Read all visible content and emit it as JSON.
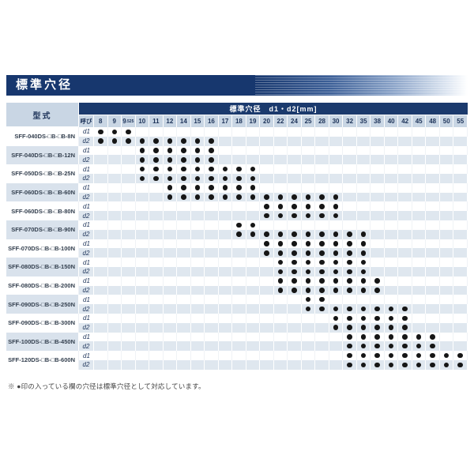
{
  "page": {
    "title": "標準穴径",
    "footnote": "※ ●印の入っている欄の穴径は標準穴径として対応しています。"
  },
  "colors": {
    "navy": "#17376e",
    "header_bg": "#c9d6e4",
    "shade_bg": "#dfe7ef",
    "dot": "#161616"
  },
  "table": {
    "model_header": "型式",
    "span_header": "標準穴径　d1・d2[mm]",
    "nominal_header": "呼び",
    "columns": [
      "8",
      "9",
      "9.525",
      "10",
      "11",
      "12",
      "14",
      "15",
      "16",
      "17",
      "18",
      "19",
      "20",
      "22",
      "24",
      "25",
      "28",
      "30",
      "32",
      "35",
      "38",
      "40",
      "42",
      "45",
      "48",
      "50",
      "55"
    ],
    "row_labels": [
      "d1",
      "d2"
    ],
    "rows": [
      {
        "model": "SFF-040DS-□B-□B-8N",
        "d1": [
          "8",
          "9",
          "9.525"
        ],
        "d2": [
          "8",
          "9",
          "9.525",
          "10",
          "11",
          "12",
          "14",
          "15",
          "16"
        ]
      },
      {
        "model": "SFF-040DS-□B-□B-12N",
        "d1": [
          "10",
          "11",
          "12",
          "14",
          "15",
          "16"
        ],
        "d2": [
          "10",
          "11",
          "12",
          "14",
          "15",
          "16"
        ]
      },
      {
        "model": "SFF-050DS-□B-□B-25N",
        "d1": [
          "10",
          "11",
          "12",
          "14",
          "15",
          "16",
          "17",
          "18",
          "19"
        ],
        "d2": [
          "10",
          "11",
          "12",
          "14",
          "15",
          "16",
          "17",
          "18",
          "19"
        ]
      },
      {
        "model": "SFF-060DS-□B-□B-60N",
        "d1": [
          "12",
          "14",
          "15",
          "16",
          "17",
          "18",
          "19"
        ],
        "d2": [
          "12",
          "14",
          "15",
          "16",
          "17",
          "18",
          "19",
          "20",
          "22",
          "24",
          "25",
          "28",
          "30"
        ]
      },
      {
        "model": "SFF-060DS-□B-□B-80N",
        "d1": [
          "20",
          "22",
          "24",
          "25",
          "28",
          "30"
        ],
        "d2": [
          "20",
          "22",
          "24",
          "25",
          "28",
          "30"
        ]
      },
      {
        "model": "SFF-070DS-□B-□B-90N",
        "d1": [
          "18",
          "19"
        ],
        "d2": [
          "18",
          "19",
          "20",
          "22",
          "24",
          "25",
          "28",
          "30",
          "32",
          "35"
        ]
      },
      {
        "model": "SFF-070DS-□B-□B-100N",
        "d1": [
          "20",
          "22",
          "24",
          "25",
          "28",
          "30",
          "32",
          "35"
        ],
        "d2": [
          "20",
          "22",
          "24",
          "25",
          "28",
          "30",
          "32",
          "35"
        ]
      },
      {
        "model": "SFF-080DS-□B-□B-150N",
        "d1": [
          "22",
          "24",
          "25",
          "28",
          "30",
          "32",
          "35"
        ],
        "d2": [
          "22",
          "24",
          "25",
          "28",
          "30",
          "32",
          "35"
        ]
      },
      {
        "model": "SFF-080DS-□B-□B-200N",
        "d1": [
          "22",
          "24",
          "25",
          "28",
          "30",
          "32",
          "35",
          "38"
        ],
        "d2": [
          "22",
          "24",
          "25",
          "28",
          "30",
          "32",
          "35",
          "38"
        ]
      },
      {
        "model": "SFF-090DS-□B-□B-250N",
        "d1": [
          "25",
          "28"
        ],
        "d2": [
          "25",
          "28",
          "30",
          "32",
          "35",
          "38",
          "40",
          "42"
        ]
      },
      {
        "model": "SFF-090DS-□B-□B-300N",
        "d1": [
          "30",
          "32",
          "35",
          "38",
          "40",
          "42"
        ],
        "d2": [
          "30",
          "32",
          "35",
          "38",
          "40",
          "42"
        ]
      },
      {
        "model": "SFF-100DS-□B-□B-450N",
        "d1": [
          "32",
          "35",
          "38",
          "40",
          "42",
          "45",
          "48"
        ],
        "d2": [
          "32",
          "35",
          "38",
          "40",
          "42",
          "45",
          "48"
        ]
      },
      {
        "model": "SFF-120DS-□B-□B-600N",
        "d1": [
          "32",
          "35",
          "38",
          "40",
          "42",
          "45",
          "48",
          "50",
          "55"
        ],
        "d2": [
          "32",
          "35",
          "38",
          "40",
          "42",
          "45",
          "48",
          "50",
          "55"
        ]
      }
    ]
  }
}
